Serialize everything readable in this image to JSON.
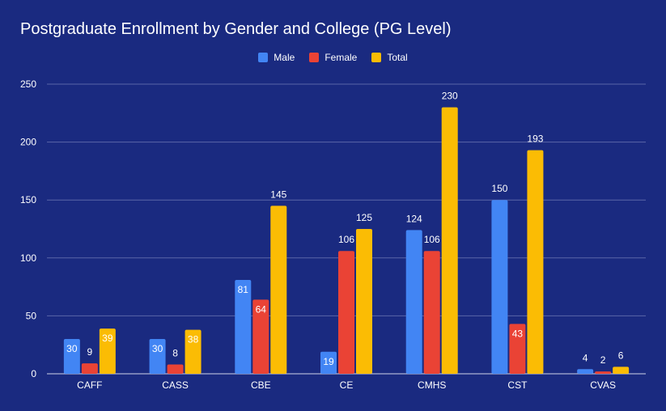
{
  "chart_data": {
    "type": "bar",
    "title": "Postgraduate Enrollment by Gender and College (PG Level)",
    "xlabel": "",
    "ylabel": "",
    "ylim": [
      0,
      250
    ],
    "yticks": [
      0,
      50,
      100,
      150,
      200,
      250
    ],
    "grid": true,
    "legend_position": "top-center",
    "categories": [
      "CAFF",
      "CASS",
      "CBE",
      "CE",
      "CMHS",
      "CST",
      "CVAS"
    ],
    "series": [
      {
        "name": "Male",
        "color": "#4285f4",
        "values": [
          30,
          30,
          81,
          19,
          124,
          150,
          4
        ]
      },
      {
        "name": "Female",
        "color": "#ea4335",
        "values": [
          9,
          8,
          64,
          106,
          106,
          43,
          2
        ]
      },
      {
        "name": "Total",
        "color": "#fbbc04",
        "values": [
          39,
          38,
          145,
          125,
          230,
          193,
          6
        ]
      }
    ]
  }
}
